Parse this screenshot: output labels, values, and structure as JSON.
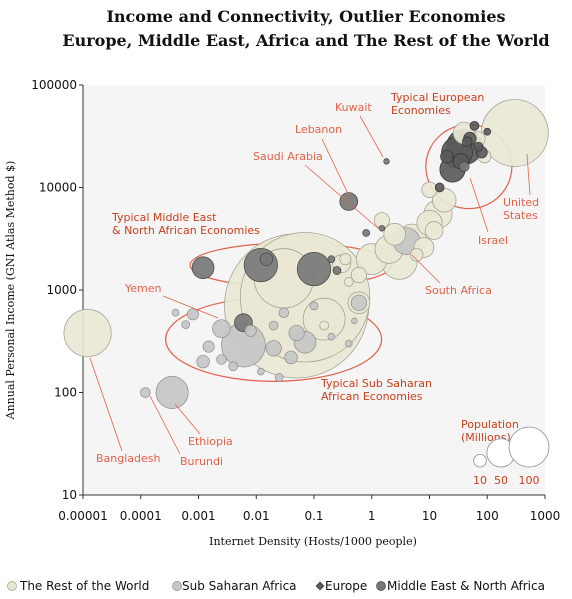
{
  "chart_data": {
    "type": "scatter",
    "title": "Income and Connectivity, Outlier Economies",
    "subtitle": "Europe, Middle East, Africa and The Rest of the World",
    "xlabel": "Internet Density (Hosts/1000 people)",
    "ylabel": "Annual Personal Income (GNI Atlas Method $)",
    "x_scale": "log",
    "y_scale": "log",
    "xlim": [
      1e-05,
      1000
    ],
    "ylim": [
      10,
      100000
    ],
    "x_ticks": [
      "0.00001",
      "0.0001",
      "0.001",
      "0.01",
      "0.1",
      "1",
      "10",
      "100",
      "1000"
    ],
    "y_ticks": [
      "100000",
      "10000",
      "1000",
      "100",
      "10"
    ],
    "series": [
      {
        "name": "The Rest of the World",
        "color": "#e9e7d4",
        "stroke": "#9c9a8a",
        "points": [
          {
            "x": 1.2e-05,
            "y": 380,
            "pop": 140
          },
          {
            "x": 0.05,
            "y": 700,
            "pop": 1300
          },
          {
            "x": 0.07,
            "y": 850,
            "pop": 1050
          },
          {
            "x": 0.03,
            "y": 1300,
            "pop": 220
          },
          {
            "x": 0.15,
            "y": 520,
            "pop": 110
          },
          {
            "x": 0.3,
            "y": 1800,
            "pop": 20
          },
          {
            "x": 0.6,
            "y": 750,
            "pop": 30
          },
          {
            "x": 0.6,
            "y": 1400,
            "pop": 15
          },
          {
            "x": 1.0,
            "y": 2000,
            "pop": 60
          },
          {
            "x": 2.0,
            "y": 2500,
            "pop": 50
          },
          {
            "x": 3.0,
            "y": 1900,
            "pop": 80
          },
          {
            "x": 1.5,
            "y": 4800,
            "pop": 15
          },
          {
            "x": 2.5,
            "y": 3500,
            "pop": 30
          },
          {
            "x": 5.0,
            "y": 3200,
            "pop": 50
          },
          {
            "x": 8.0,
            "y": 2600,
            "pop": 25
          },
          {
            "x": 10.0,
            "y": 4500,
            "pop": 40
          },
          {
            "x": 14.0,
            "y": 5500,
            "pop": 50
          },
          {
            "x": 18.0,
            "y": 7500,
            "pop": 35
          },
          {
            "x": 10.0,
            "y": 9500,
            "pop": 15
          },
          {
            "x": 12.0,
            "y": 3800,
            "pop": 20
          },
          {
            "x": 6.0,
            "y": 2200,
            "pop": 10
          },
          {
            "x": 0.35,
            "y": 2000,
            "pop": 8
          },
          {
            "x": 0.4,
            "y": 1200,
            "pop": 5
          },
          {
            "x": 40.0,
            "y": 34000,
            "pop": 30
          },
          {
            "x": 70.0,
            "y": 30000,
            "pop": 12
          },
          {
            "x": 300.0,
            "y": 34000,
            "pop": 280
          },
          {
            "x": 90.0,
            "y": 20000,
            "pop": 10
          },
          {
            "x": 0.15,
            "y": 450,
            "pop": 5
          }
        ]
      },
      {
        "name": "Sub Saharan Africa",
        "color": "#c6c6c6",
        "stroke": "#8c8c8c",
        "points": [
          {
            "x": 0.00012,
            "y": 100,
            "pop": 6
          },
          {
            "x": 0.00035,
            "y": 100,
            "pop": 65
          },
          {
            "x": 0.0025,
            "y": 420,
            "pop": 20
          },
          {
            "x": 0.006,
            "y": 290,
            "pop": 120
          },
          {
            "x": 0.02,
            "y": 270,
            "pop": 15
          },
          {
            "x": 0.04,
            "y": 220,
            "pop": 10
          },
          {
            "x": 0.07,
            "y": 310,
            "pop": 30
          },
          {
            "x": 0.05,
            "y": 380,
            "pop": 15
          },
          {
            "x": 0.02,
            "y": 450,
            "pop": 5
          },
          {
            "x": 0.008,
            "y": 400,
            "pop": 8
          },
          {
            "x": 0.0012,
            "y": 200,
            "pop": 10
          },
          {
            "x": 0.0015,
            "y": 280,
            "pop": 8
          },
          {
            "x": 0.004,
            "y": 180,
            "pop": 5
          },
          {
            "x": 0.0025,
            "y": 210,
            "pop": 6
          },
          {
            "x": 0.0008,
            "y": 580,
            "pop": 8
          },
          {
            "x": 0.0006,
            "y": 460,
            "pop": 4
          },
          {
            "x": 0.012,
            "y": 160,
            "pop": 3
          },
          {
            "x": 0.025,
            "y": 140,
            "pop": 4
          },
          {
            "x": 0.03,
            "y": 600,
            "pop": 6
          },
          {
            "x": 0.1,
            "y": 700,
            "pop": 4
          },
          {
            "x": 0.2,
            "y": 350,
            "pop": 3
          },
          {
            "x": 0.5,
            "y": 500,
            "pop": 2
          },
          {
            "x": 0.4,
            "y": 300,
            "pop": 3
          },
          {
            "x": 0.0004,
            "y": 600,
            "pop": 3
          },
          {
            "x": 0.6,
            "y": 750,
            "pop": 15
          },
          {
            "x": 4.0,
            "y": 3000,
            "pop": 45
          }
        ]
      },
      {
        "name": "Europe",
        "color": "#5a5a5a",
        "stroke": "#333333",
        "points": [
          {
            "x": 30.0,
            "y": 22000,
            "pop": 60
          },
          {
            "x": 40.0,
            "y": 25000,
            "pop": 80
          },
          {
            "x": 25.0,
            "y": 15000,
            "pop": 40
          },
          {
            "x": 20.0,
            "y": 20000,
            "pop": 10
          },
          {
            "x": 50.0,
            "y": 30000,
            "pop": 10
          },
          {
            "x": 70.0,
            "y": 25000,
            "pop": 5
          },
          {
            "x": 60.0,
            "y": 40000,
            "pop": 5
          },
          {
            "x": 100.0,
            "y": 35000,
            "pop": 3
          },
          {
            "x": 35.0,
            "y": 18000,
            "pop": 15
          },
          {
            "x": 15.0,
            "y": 10000,
            "pop": 5
          },
          {
            "x": 80.0,
            "y": 22000,
            "pop": 8
          },
          {
            "x": 45.0,
            "y": 28000,
            "pop": 6
          }
        ]
      },
      {
        "name": "Middle East & North Africa",
        "color": "#777777",
        "stroke": "#444444",
        "points": [
          {
            "x": 0.006,
            "y": 480,
            "pop": 20
          },
          {
            "x": 0.0012,
            "y": 1650,
            "pop": 30
          },
          {
            "x": 0.012,
            "y": 1750,
            "pop": 70
          },
          {
            "x": 0.1,
            "y": 1600,
            "pop": 70
          },
          {
            "x": 0.015,
            "y": 2000,
            "pop": 10
          },
          {
            "x": 0.4,
            "y": 7300,
            "pop": 20
          },
          {
            "x": 1.8,
            "y": 18000,
            "pop": 2
          },
          {
            "x": 0.8,
            "y": 3600,
            "pop": 3
          },
          {
            "x": 0.2,
            "y": 2000,
            "pop": 3
          },
          {
            "x": 0.25,
            "y": 1550,
            "pop": 4
          },
          {
            "x": 40.0,
            "y": 16000,
            "pop": 6
          },
          {
            "x": 1.5,
            "y": 4000,
            "pop": 2
          }
        ]
      }
    ],
    "annotations": [
      {
        "text": "Kuwait"
      },
      {
        "text": "Typical European Economies",
        "lines": [
          "Typical European",
          "Economies"
        ]
      },
      {
        "text": "Lebanon"
      },
      {
        "text": "Saudi Arabia"
      },
      {
        "text": "United States",
        "lines": [
          "United",
          "States"
        ]
      },
      {
        "text": "Israel"
      },
      {
        "text": "Typical Middle East & North African Economies",
        "lines": [
          "Typical Middle East",
          "& North African Economies"
        ]
      },
      {
        "text": "Yemen"
      },
      {
        "text": "South Africa"
      },
      {
        "text": "Typical Sub Saharan African Economies",
        "lines": [
          "Typical Sub Saharan",
          "African Economies"
        ]
      },
      {
        "text": "Ethiopia"
      },
      {
        "text": "Bangladesh"
      },
      {
        "text": "Burundi"
      }
    ],
    "size_legend": {
      "title_lines": [
        "Population",
        "(Millions)"
      ],
      "items": [
        {
          "label": "10",
          "pop": 10
        },
        {
          "label": "50",
          "pop": 50
        },
        {
          "label": "100",
          "pop": 100
        }
      ]
    },
    "legend_placement": "bottom",
    "grid": false
  }
}
